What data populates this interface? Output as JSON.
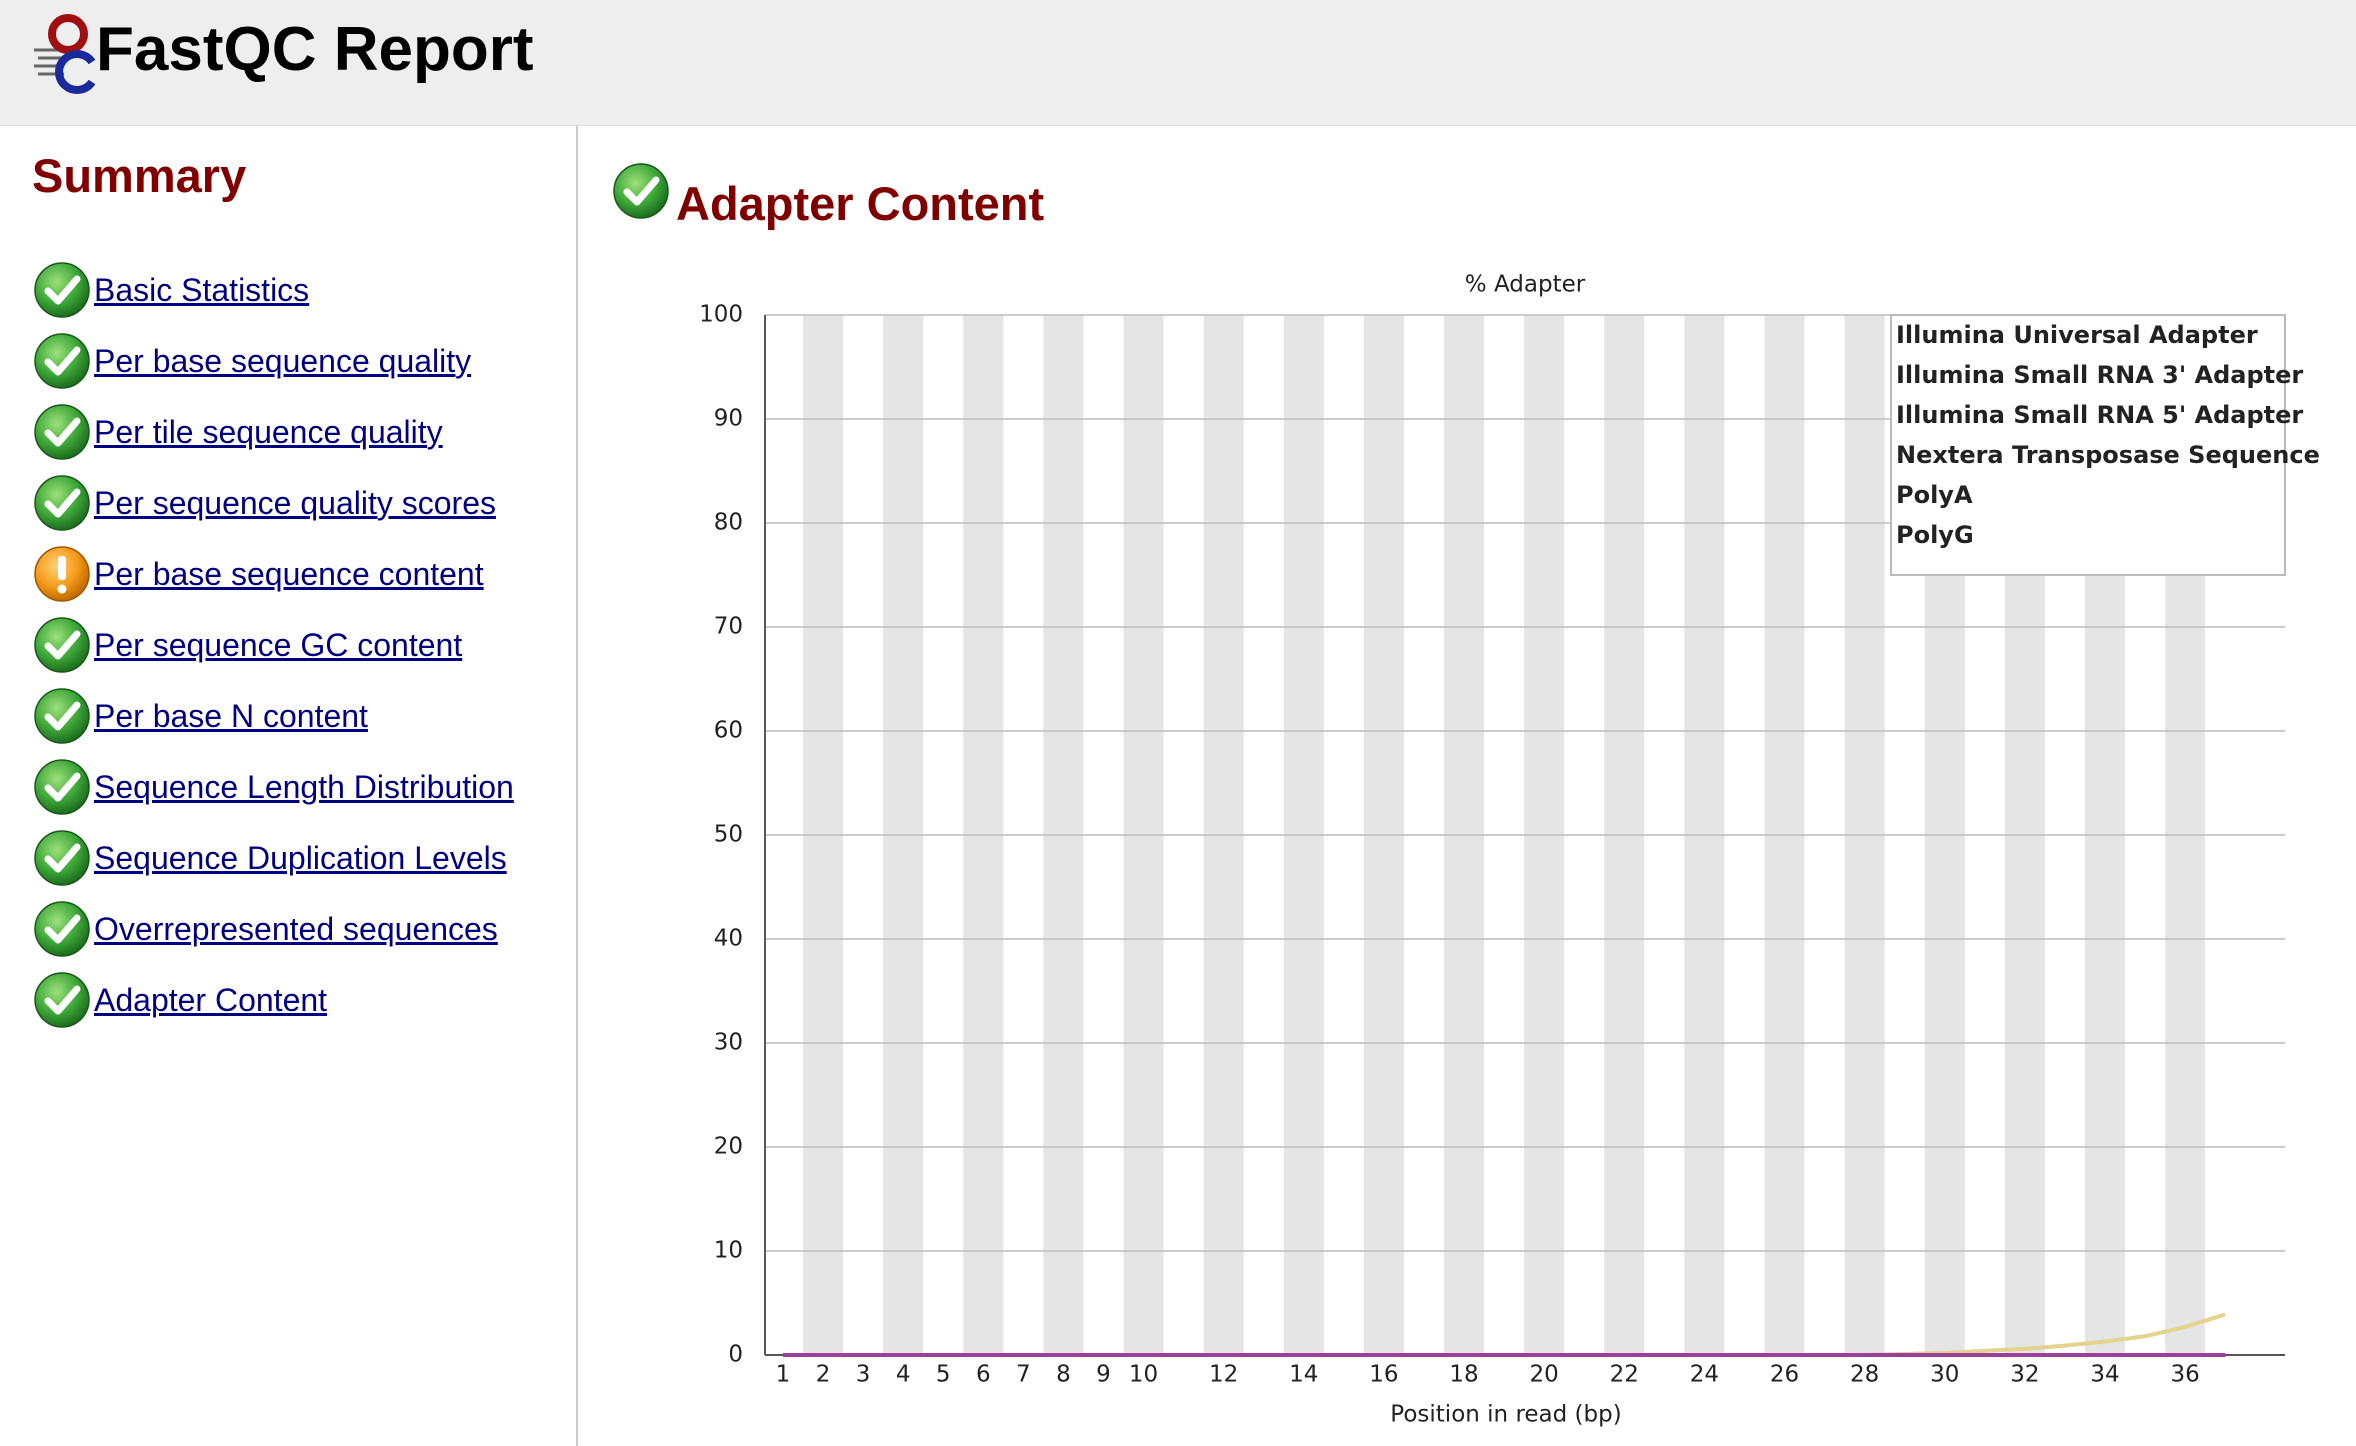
{
  "header": {
    "title": "FastQC Report"
  },
  "summary": {
    "title": "Summary",
    "items": [
      {
        "label": "Basic Statistics",
        "status": "pass"
      },
      {
        "label": "Per base sequence quality",
        "status": "pass"
      },
      {
        "label": "Per tile sequence quality",
        "status": "pass"
      },
      {
        "label": "Per sequence quality scores",
        "status": "pass"
      },
      {
        "label": "Per base sequence content",
        "status": "warn"
      },
      {
        "label": "Per sequence GC content",
        "status": "pass"
      },
      {
        "label": "Per base N content",
        "status": "pass"
      },
      {
        "label": "Sequence Length Distribution",
        "status": "pass"
      },
      {
        "label": "Sequence Duplication Levels",
        "status": "pass"
      },
      {
        "label": "Overrepresented sequences",
        "status": "pass"
      },
      {
        "label": "Adapter Content",
        "status": "pass"
      }
    ]
  },
  "module": {
    "title": "Adapter Content",
    "status": "pass"
  },
  "chart_data": {
    "type": "line",
    "title": "% Adapter",
    "x_label": "Position in read (bp)",
    "categories": [
      "1",
      "2",
      "3",
      "4",
      "5",
      "6",
      "7",
      "8",
      "9",
      "10",
      null,
      "12",
      null,
      "14",
      null,
      "16",
      null,
      "18",
      null,
      "20",
      null,
      "22",
      null,
      "24",
      null,
      "26",
      null,
      "28",
      null,
      "30",
      null,
      "32",
      null,
      "34",
      null,
      "36",
      null
    ],
    "ylim": [
      0,
      100
    ],
    "yticks": [
      0,
      10,
      20,
      30,
      40,
      50,
      60,
      70,
      80,
      90,
      100
    ],
    "grid": true,
    "legend": "top-right",
    "series": [
      {
        "name": "Illumina Universal Adapter",
        "color": "#8b2252",
        "values": [
          0,
          0,
          0,
          0,
          0,
          0,
          0,
          0,
          0,
          0,
          0,
          0,
          0,
          0,
          0,
          0,
          0,
          0,
          0,
          0,
          0,
          0,
          0,
          0,
          0,
          0,
          0,
          0,
          0,
          0,
          0,
          0,
          0,
          0,
          0,
          0,
          0
        ]
      },
      {
        "name": "Illumina Small RNA 3' Adapter",
        "color": "#2e2b8c",
        "values": [
          0,
          0,
          0,
          0,
          0,
          0,
          0,
          0,
          0,
          0,
          0,
          0,
          0,
          0,
          0,
          0,
          0,
          0,
          0,
          0,
          0,
          0,
          0,
          0,
          0,
          0,
          0,
          0,
          0,
          0,
          0,
          0,
          0,
          0,
          0,
          0,
          0
        ]
      },
      {
        "name": "Illumina Small RNA 5' Adapter",
        "color": "#1f6b2c",
        "values": [
          0,
          0,
          0,
          0,
          0,
          0,
          0,
          0,
          0,
          0,
          0,
          0,
          0,
          0,
          0,
          0,
          0,
          0,
          0,
          0,
          0,
          0,
          0,
          0,
          0,
          0,
          0,
          0,
          0,
          0,
          0,
          0,
          0,
          0,
          0,
          0,
          0
        ]
      },
      {
        "name": "Nextera Transposase Sequence",
        "color": "#e3d38c",
        "values": [
          0,
          0,
          0,
          0,
          0,
          0,
          0,
          0,
          0,
          0,
          0,
          0,
          0,
          0,
          0,
          0,
          0,
          0,
          0,
          0,
          0,
          0,
          0,
          0,
          0,
          0,
          0,
          0,
          0.1,
          0.2,
          0.4,
          0.6,
          0.9,
          1.3,
          1.8,
          2.7,
          3.9
        ]
      },
      {
        "name": "PolyA",
        "color": "#4aa9a4",
        "values": [
          0,
          0,
          0,
          0,
          0,
          0,
          0,
          0,
          0,
          0,
          0,
          0,
          0,
          0,
          0,
          0,
          0,
          0,
          0,
          0,
          0,
          0,
          0,
          0,
          0,
          0,
          0,
          0,
          0,
          0,
          0,
          0,
          0,
          0,
          0,
          0,
          0
        ]
      },
      {
        "name": "PolyG",
        "color": "#9b3f9b",
        "values": [
          0,
          0,
          0,
          0,
          0,
          0,
          0,
          0,
          0,
          0,
          0,
          0,
          0,
          0,
          0,
          0,
          0,
          0,
          0,
          0,
          0,
          0,
          0,
          0,
          0,
          0,
          0,
          0,
          0,
          0,
          0,
          0,
          0,
          0,
          0,
          0,
          0
        ]
      }
    ]
  }
}
